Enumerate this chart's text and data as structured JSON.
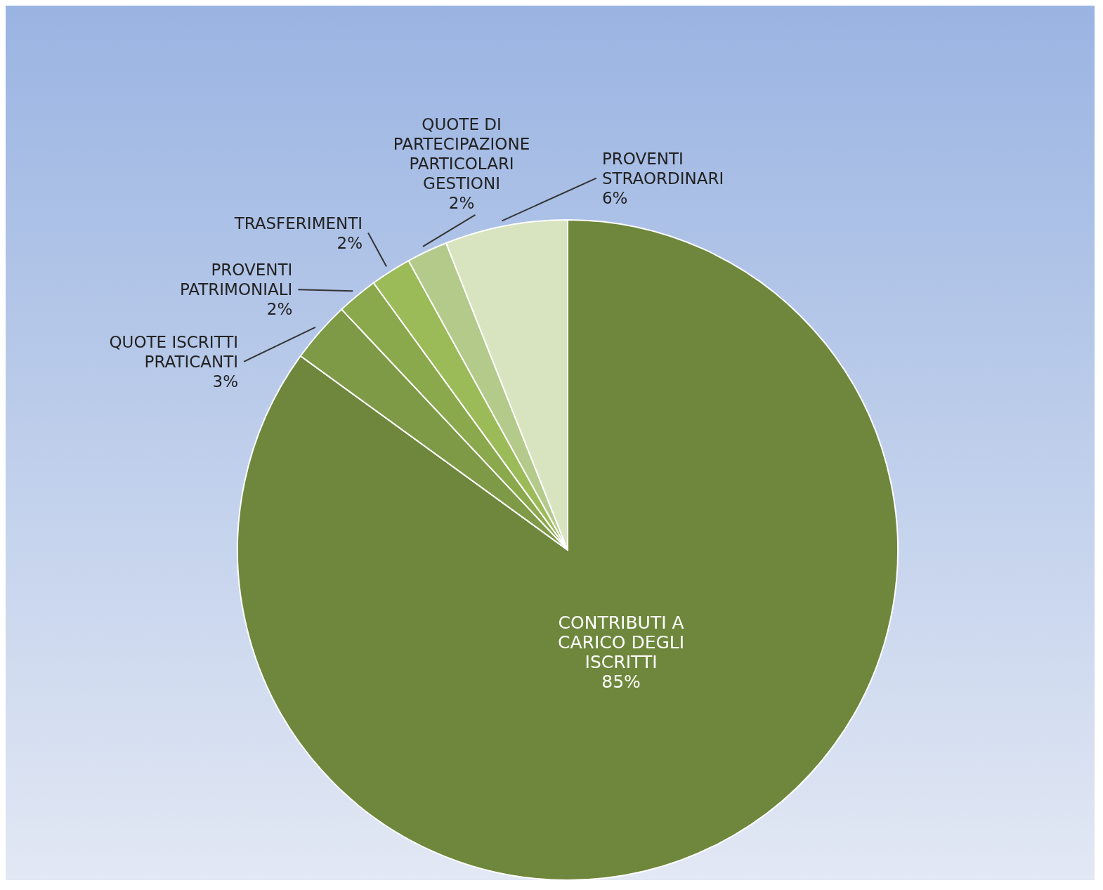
{
  "chart_data": {
    "type": "pie",
    "categories": [
      "CONTRIBUTI A CARICO DEGLI ISCRITTI",
      "QUOTE ISCRITTI PRATICANTI",
      "PROVENTI PATRIMONIALI",
      "TRASFERIMENTI",
      "QUOTE DI PARTECIPAZIONE PARTICOLARI GESTIONI",
      "PROVENTI STRAORDINARI"
    ],
    "values": [
      85,
      3,
      2,
      2,
      2,
      6
    ],
    "colors": [
      "#6e873c",
      "#7e9a46",
      "#8aa84c",
      "#9bbb59",
      "#b3ca8a",
      "#d8e4bf"
    ],
    "value_labels": [
      "85%",
      "3%",
      "2%",
      "2%",
      "2%",
      "6%"
    ]
  }
}
